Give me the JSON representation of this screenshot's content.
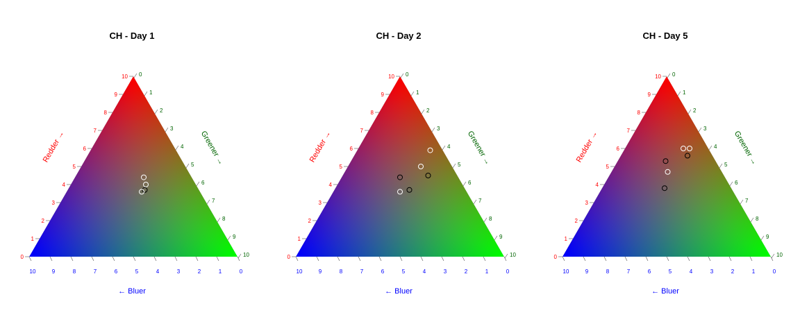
{
  "chart_data": [
    {
      "type": "ternary-scatter",
      "title": "CH - Day 1",
      "axes": {
        "red_label": "Redder →",
        "green_label": "Greener →",
        "blue_label": "← Bluer"
      },
      "ticks": [
        "0",
        "1",
        "2",
        "3",
        "4",
        "5",
        "6",
        "7",
        "8",
        "9",
        "10"
      ],
      "scale_max": 10,
      "points": [
        {
          "red": 4.4,
          "green": 3.3,
          "blue": 2.3,
          "marker": "white"
        },
        {
          "red": 4.0,
          "green": 3.6,
          "blue": 2.4,
          "marker": "white"
        },
        {
          "red": 3.7,
          "green": 3.7,
          "blue": 2.6,
          "marker": "black"
        },
        {
          "red": 3.6,
          "green": 3.6,
          "blue": 2.8,
          "marker": "white"
        }
      ]
    },
    {
      "type": "ternary-scatter",
      "title": "CH - Day 2",
      "axes": {
        "red_label": "Redder →",
        "green_label": "Greener →",
        "blue_label": "← Bluer"
      },
      "ticks": [
        "0",
        "1",
        "2",
        "3",
        "4",
        "5",
        "6",
        "7",
        "8",
        "9",
        "10"
      ],
      "scale_max": 10,
      "points": [
        {
          "red": 5.9,
          "green": 3.5,
          "blue": 0.6,
          "marker": "white"
        },
        {
          "red": 5.0,
          "green": 3.5,
          "blue": 1.5,
          "marker": "white"
        },
        {
          "red": 4.5,
          "green": 4.1,
          "blue": 1.4,
          "marker": "black"
        },
        {
          "red": 4.4,
          "green": 2.8,
          "blue": 2.8,
          "marker": "black"
        },
        {
          "red": 3.7,
          "green": 3.6,
          "blue": 2.7,
          "marker": "black"
        },
        {
          "red": 3.6,
          "green": 3.2,
          "blue": 3.2,
          "marker": "white"
        }
      ]
    },
    {
      "type": "ternary-scatter",
      "title": "CH - Day 5",
      "axes": {
        "red_label": "Redder →",
        "green_label": "Greener →",
        "blue_label": "← Bluer"
      },
      "ticks": [
        "0",
        "1",
        "2",
        "3",
        "4",
        "5",
        "6",
        "7",
        "8",
        "9",
        "10"
      ],
      "scale_max": 10,
      "points": [
        {
          "red": 6.0,
          "green": 3.1,
          "blue": 0.9,
          "marker": "white"
        },
        {
          "red": 6.0,
          "green": 2.8,
          "blue": 1.2,
          "marker": "white"
        },
        {
          "red": 5.6,
          "green": 3.2,
          "blue": 1.2,
          "marker": "black"
        },
        {
          "red": 5.3,
          "green": 2.3,
          "blue": 2.4,
          "marker": "black"
        },
        {
          "red": 4.7,
          "green": 2.7,
          "blue": 2.6,
          "marker": "white"
        },
        {
          "red": 3.8,
          "green": 3.0,
          "blue": 3.2,
          "marker": "black"
        }
      ]
    }
  ],
  "colors": {
    "red_axis": "#ff0000",
    "green_axis": "#006400",
    "blue_axis": "#0000ff",
    "black": "#000000",
    "white": "#ffffff"
  }
}
